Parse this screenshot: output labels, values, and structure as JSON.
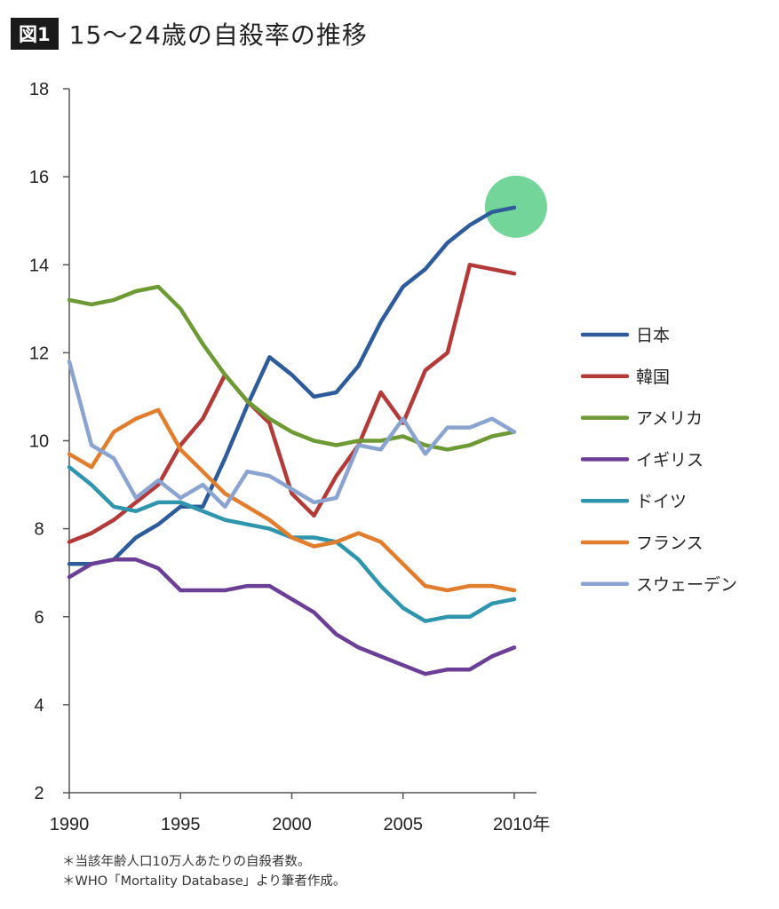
{
  "header": {
    "badge": "図1",
    "title": "15～24歳の自殺率の推移"
  },
  "chart_data": {
    "type": "line",
    "title": "15～24歳の自殺率の推移",
    "xlabel": "年",
    "ylabel": "",
    "xlim": [
      1990,
      2011
    ],
    "ylim": [
      2,
      18
    ],
    "x_ticks": [
      "1990",
      "1995",
      "2000",
      "2005",
      "2010年"
    ],
    "y_ticks": [
      "2",
      "4",
      "6",
      "8",
      "10",
      "12",
      "14",
      "16",
      "18"
    ],
    "x": [
      1990,
      1991,
      1992,
      1993,
      1994,
      1995,
      1996,
      1997,
      1998,
      1999,
      2000,
      2001,
      2002,
      2003,
      2004,
      2005,
      2006,
      2007,
      2008,
      2009,
      2010
    ],
    "series": [
      {
        "name": "日本",
        "color": "#2e5c9a",
        "values": [
          7.2,
          7.2,
          7.3,
          7.8,
          8.1,
          8.5,
          8.5,
          9.6,
          10.8,
          11.9,
          11.5,
          11.0,
          11.1,
          11.7,
          12.7,
          13.5,
          13.9,
          14.5,
          14.9,
          15.2,
          15.3
        ]
      },
      {
        "name": "韓国",
        "color": "#b23b3a",
        "values": [
          7.7,
          7.9,
          8.2,
          8.6,
          9.0,
          9.9,
          10.5,
          11.5,
          10.9,
          10.4,
          8.8,
          8.3,
          9.2,
          9.9,
          11.1,
          10.4,
          11.6,
          12.0,
          14.0,
          13.9,
          13.8
        ]
      },
      {
        "name": "アメリカ",
        "color": "#6e9a36",
        "values": [
          13.2,
          13.1,
          13.2,
          13.4,
          13.5,
          13.0,
          12.2,
          11.5,
          10.9,
          10.5,
          10.2,
          10.0,
          9.9,
          10.0,
          10.0,
          10.1,
          9.9,
          9.8,
          9.9,
          10.1,
          10.2
        ]
      },
      {
        "name": "イギリス",
        "color": "#6b3f96",
        "values": [
          6.9,
          7.2,
          7.3,
          7.3,
          7.1,
          6.6,
          6.6,
          6.6,
          6.7,
          6.7,
          6.4,
          6.1,
          5.6,
          5.3,
          5.1,
          4.9,
          4.7,
          4.8,
          4.8,
          5.1,
          5.3
        ]
      },
      {
        "name": "ドイツ",
        "color": "#2f95ad",
        "values": [
          9.4,
          9.0,
          8.5,
          8.4,
          8.6,
          8.6,
          8.4,
          8.2,
          8.1,
          8.0,
          7.8,
          7.8,
          7.7,
          7.3,
          6.7,
          6.2,
          5.9,
          6.0,
          6.0,
          6.3,
          6.4
        ]
      },
      {
        "name": "フランス",
        "color": "#e07e2e",
        "values": [
          9.7,
          9.4,
          10.2,
          10.5,
          10.7,
          9.8,
          9.3,
          8.8,
          8.5,
          8.2,
          7.8,
          7.6,
          7.7,
          7.9,
          7.7,
          7.2,
          6.7,
          6.6,
          6.7,
          6.7,
          6.6
        ]
      },
      {
        "name": "スウェーデン",
        "color": "#8aa3cf",
        "values": [
          11.8,
          9.9,
          9.6,
          8.7,
          9.1,
          8.7,
          9.0,
          8.5,
          9.3,
          9.2,
          8.9,
          8.6,
          8.7,
          9.9,
          9.8,
          10.5,
          9.7,
          10.3,
          10.3,
          10.5,
          10.2
        ]
      }
    ],
    "highlight": {
      "series": "日本",
      "year": 2010,
      "value": 15.3,
      "color": "#5cce8a"
    },
    "legend_position": "right"
  },
  "notes": [
    "＊当該年齢人口10万人あたりの自殺者数。",
    "＊WHO「Mortality Database」より筆者作成。"
  ]
}
